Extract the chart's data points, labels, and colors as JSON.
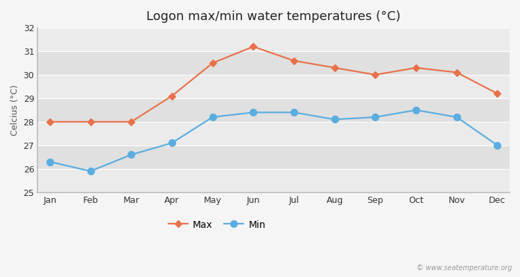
{
  "title": "Logon max/min water temperatures (°C)",
  "ylabel": "Celcius (°C)",
  "months": [
    "Jan",
    "Feb",
    "Mar",
    "Apr",
    "May",
    "Jun",
    "Jul",
    "Aug",
    "Sep",
    "Oct",
    "Nov",
    "Dec"
  ],
  "max_values": [
    28.0,
    28.0,
    28.0,
    29.1,
    30.5,
    31.2,
    30.6,
    30.3,
    30.0,
    30.3,
    30.1,
    29.2
  ],
  "min_values": [
    26.3,
    25.9,
    26.6,
    27.1,
    28.2,
    28.4,
    28.4,
    28.1,
    28.2,
    28.5,
    28.2,
    27.0
  ],
  "max_color": "#e8714a",
  "min_color": "#5aade0",
  "fig_bg_color": "#f5f5f5",
  "band_colors": [
    "#ebebeb",
    "#e0e0e0"
  ],
  "ylim": [
    25,
    32
  ],
  "yticks": [
    25,
    26,
    27,
    28,
    29,
    30,
    31,
    32
  ],
  "legend_labels": [
    "Max",
    "Min"
  ],
  "watermark": "© www.seatemperature.org",
  "title_fontsize": 13,
  "axis_label_fontsize": 9,
  "tick_fontsize": 9,
  "legend_fontsize": 10,
  "marker_style_max": "D",
  "marker_style_min": "o",
  "marker_size_max": 5,
  "marker_size_min": 7,
  "line_width": 1.6
}
